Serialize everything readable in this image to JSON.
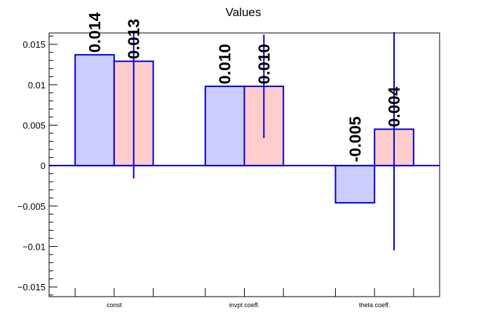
{
  "chart_data": {
    "type": "bar",
    "title": "Values",
    "xlabel": "",
    "ylabel": "",
    "categories": [
      "const",
      "invpt coeff.",
      "theta coeff."
    ],
    "series": [
      {
        "values": [
          0.0137,
          0.0098,
          -0.0046
        ],
        "labels": [
          "0.014",
          "0.010",
          "-0.005"
        ],
        "fill": "#ccccff",
        "stroke": "#0000cc"
      },
      {
        "values": [
          0.0129,
          0.0098,
          0.0045
        ],
        "labels": [
          "0.013",
          "0.010",
          "0.004"
        ],
        "errors": [
          0.0144,
          0.0063,
          0.0149
        ],
        "fill": "#ffcccc",
        "stroke": "#0000cc"
      }
    ],
    "ylim": [
      -0.0162,
      0.0164
    ],
    "yticks": [
      -0.015,
      -0.01,
      -0.005,
      0,
      0.005,
      0.01,
      0.015
    ],
    "ytick_labels": [
      "−0.015",
      "−0.01",
      "−0.005",
      "0",
      "0.005",
      "0.01",
      "0.015"
    ],
    "grid": false,
    "legend": "none"
  }
}
